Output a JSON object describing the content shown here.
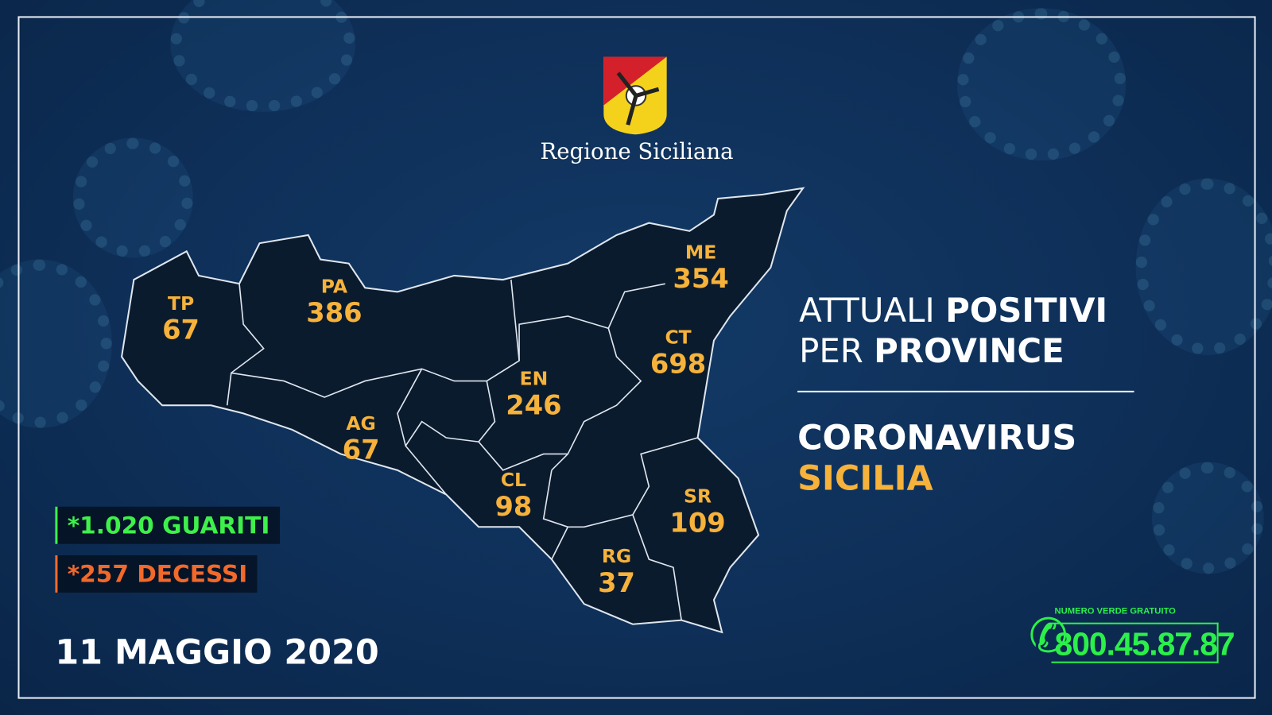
{
  "brand": "Regione Siciliana",
  "title": {
    "line1_light": "ATTUALI",
    "line1_bold": "POSITIVI",
    "line2_light": "PER",
    "line2_bold": "PROVINCE"
  },
  "subtitle": {
    "line1": "CORONAVIRUS",
    "line2": "SICILIA"
  },
  "provinces": [
    {
      "code": "TP",
      "value": "67"
    },
    {
      "code": "PA",
      "value": "386"
    },
    {
      "code": "ME",
      "value": "354"
    },
    {
      "code": "CT",
      "value": "698"
    },
    {
      "code": "EN",
      "value": "246"
    },
    {
      "code": "AG",
      "value": "67"
    },
    {
      "code": "CL",
      "value": "98"
    },
    {
      "code": "SR",
      "value": "109"
    },
    {
      "code": "RG",
      "value": "37"
    }
  ],
  "stats": {
    "recovered": "*1.020 GUARITI",
    "deaths": "*257 DECESSI"
  },
  "date": "11 MAGGIO 2020",
  "hotline": {
    "label": "NUMERO VERDE GRATUITO",
    "number": "800.45.87.87",
    "icon": "phone-icon"
  },
  "colors": {
    "accent": "#f6b23a",
    "recovered": "#3ef04a",
    "deaths": "#f2692a",
    "background": "#0e2f58",
    "map": "#0b1b2e"
  }
}
